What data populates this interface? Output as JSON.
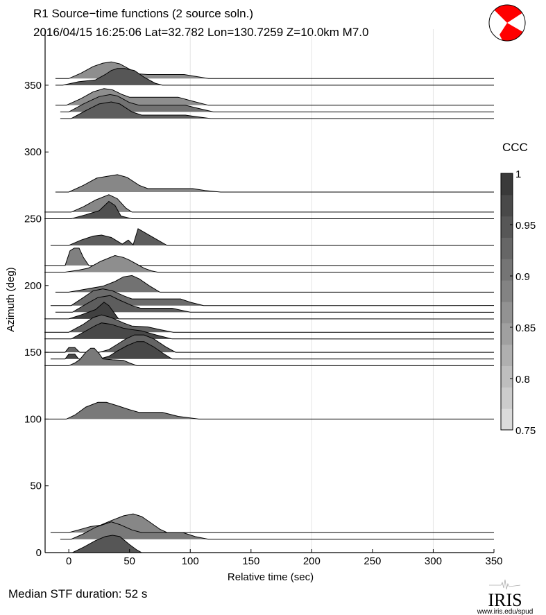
{
  "chart_data": {
    "type": "area",
    "title": "R1 Source−time functions (2 source soln.)",
    "subtitle": "2016/04/15 16:25:06   Lat=32.782  Lon=130.7259   Z=10.0km   M7.0",
    "xlabel": "Relative time (sec)",
    "ylabel": "Azimuth (deg)",
    "xlim": [
      -19.5,
      350
    ],
    "ylim": [
      0,
      392
    ],
    "xticks": [
      0,
      50,
      100,
      150,
      200,
      250,
      300,
      350
    ],
    "yticks": [
      0,
      50,
      100,
      150,
      200,
      250,
      300,
      350
    ],
    "grid_x": [
      100,
      200,
      300
    ],
    "colorbar": {
      "title": "CCC",
      "range": [
        0.75,
        1
      ],
      "ticks": [
        "1",
        "0.95",
        "0.9",
        "0.85",
        "0.8",
        "0.75"
      ],
      "tick_values": [
        1,
        0.95,
        0.9,
        0.85,
        0.8,
        0.75
      ],
      "light_color": "#e2e2e2",
      "dark_color": "#333333"
    },
    "series": [
      {
        "azimuth": 355,
        "ccc": 0.87,
        "points": [
          [
            -11,
            0
          ],
          [
            0,
            0
          ],
          [
            10,
            4
          ],
          [
            20,
            9
          ],
          [
            28,
            11.5
          ],
          [
            35,
            12.5
          ],
          [
            42,
            11
          ],
          [
            50,
            7
          ],
          [
            57,
            3.5
          ],
          [
            65,
            3
          ],
          [
            95,
            3
          ],
          [
            105,
            1.5
          ],
          [
            115,
            0
          ]
        ]
      },
      {
        "azimuth": 350,
        "ccc": 0.95,
        "points": [
          [
            -11,
            0
          ],
          [
            -5,
            0
          ],
          [
            8,
            2.6
          ],
          [
            22,
            4
          ],
          [
            30,
            8
          ],
          [
            35,
            11
          ],
          [
            40,
            12.5
          ],
          [
            46,
            12.5
          ],
          [
            54,
            11
          ],
          [
            62,
            6
          ],
          [
            71,
            1.5
          ],
          [
            77,
            0
          ]
        ]
      },
      {
        "azimuth": 335,
        "ccc": 0.87,
        "points": [
          [
            -11,
            0
          ],
          [
            -2,
            0
          ],
          [
            10,
            5
          ],
          [
            20,
            10
          ],
          [
            29,
            12.5
          ],
          [
            36,
            11.5
          ],
          [
            44,
            8
          ],
          [
            50,
            6
          ],
          [
            90,
            6
          ],
          [
            100,
            3.5
          ],
          [
            115,
            0
          ]
        ]
      },
      {
        "azimuth": 330,
        "ccc": 0.91,
        "points": [
          [
            -7,
            0
          ],
          [
            0,
            0
          ],
          [
            12,
            6
          ],
          [
            25,
            11.5
          ],
          [
            34,
            13
          ],
          [
            40,
            12
          ],
          [
            50,
            7
          ],
          [
            58,
            5
          ],
          [
            96,
            5
          ],
          [
            105,
            3
          ],
          [
            119,
            0
          ]
        ]
      },
      {
        "azimuth": 325,
        "ccc": 0.94,
        "points": [
          [
            -7,
            0
          ],
          [
            2,
            0
          ],
          [
            14,
            6
          ],
          [
            25,
            11
          ],
          [
            35,
            12.5
          ],
          [
            42,
            11
          ],
          [
            52,
            5
          ],
          [
            60,
            2.6
          ],
          [
            96,
            2.6
          ],
          [
            105,
            1.5
          ],
          [
            117,
            0
          ]
        ]
      },
      {
        "azimuth": 270,
        "ccc": 0.88,
        "points": [
          [
            -11,
            0
          ],
          [
            0,
            0
          ],
          [
            12,
            5
          ],
          [
            23,
            10.4
          ],
          [
            30,
            11.5
          ],
          [
            40,
            13
          ],
          [
            48,
            11
          ],
          [
            58,
            5
          ],
          [
            65,
            2.6
          ],
          [
            102,
            2.6
          ],
          [
            112,
            1.2
          ],
          [
            125,
            0
          ]
        ]
      },
      {
        "azimuth": 255,
        "ccc": 0.88,
        "points": [
          [
            -20,
            0
          ],
          [
            2,
            0
          ],
          [
            12,
            4
          ],
          [
            22,
            9
          ],
          [
            33,
            13
          ],
          [
            40,
            10
          ],
          [
            47,
            3
          ],
          [
            52,
            0
          ]
        ]
      },
      {
        "azimuth": 250,
        "ccc": 0.96,
        "points": [
          [
            -20,
            0
          ],
          [
            2,
            0
          ],
          [
            14,
            3
          ],
          [
            25,
            6
          ],
          [
            33,
            13
          ],
          [
            38,
            10
          ],
          [
            43,
            2
          ],
          [
            52,
            0
          ]
        ]
      },
      {
        "azimuth": 230,
        "ccc": 0.94,
        "points": [
          [
            -15,
            0
          ],
          [
            0,
            0
          ],
          [
            10,
            4
          ],
          [
            20,
            7
          ],
          [
            27,
            7.8
          ],
          [
            35,
            6
          ],
          [
            44,
            1
          ],
          [
            49,
            4
          ],
          [
            53,
            0.5
          ],
          [
            57,
            12.5
          ],
          [
            81,
            0
          ]
        ]
      },
      {
        "azimuth": 215,
        "ccc": 0.89,
        "points": [
          [
            -20,
            0
          ],
          [
            -3,
            0
          ],
          [
            1,
            11
          ],
          [
            4.5,
            13
          ],
          [
            8.5,
            13
          ],
          [
            12,
            6
          ],
          [
            16.5,
            0
          ]
        ]
      },
      {
        "azimuth": 210,
        "ccc": 0.87,
        "points": [
          [
            -20,
            0
          ],
          [
            -3,
            0
          ],
          [
            8,
            1.5
          ],
          [
            16,
            3
          ],
          [
            26,
            8
          ],
          [
            38,
            12.5
          ],
          [
            45,
            11
          ],
          [
            50,
            9
          ],
          [
            56,
            6
          ],
          [
            62,
            3
          ],
          [
            68,
            1
          ],
          [
            73,
            0
          ]
        ]
      },
      {
        "azimuth": 195,
        "ccc": 0.91,
        "points": [
          [
            -11,
            0
          ],
          [
            0,
            0
          ],
          [
            12,
            2
          ],
          [
            28,
            4.5
          ],
          [
            38,
            8
          ],
          [
            45,
            11.5
          ],
          [
            52,
            12.5
          ],
          [
            58,
            10
          ],
          [
            66,
            5
          ],
          [
            75,
            0
          ]
        ]
      },
      {
        "azimuth": 185,
        "ccc": 0.92,
        "points": [
          [
            -15,
            0
          ],
          [
            2,
            0
          ],
          [
            12,
            6
          ],
          [
            20,
            11
          ],
          [
            28,
            12.5
          ],
          [
            36,
            11
          ],
          [
            46,
            7
          ],
          [
            52,
            5
          ],
          [
            92,
            5
          ],
          [
            100,
            2.5
          ],
          [
            111,
            0
          ]
        ]
      },
      {
        "azimuth": 180,
        "ccc": 0.94,
        "points": [
          [
            -11,
            0
          ],
          [
            3,
            0
          ],
          [
            14,
            6
          ],
          [
            24,
            11
          ],
          [
            34,
            12.5
          ],
          [
            42,
            9
          ],
          [
            52,
            5
          ],
          [
            59,
            3
          ],
          [
            85,
            3
          ],
          [
            100,
            0
          ]
        ]
      },
      {
        "azimuth": 175,
        "ccc": 0.98,
        "points": [
          [
            -20,
            0
          ],
          [
            0,
            0
          ],
          [
            10,
            3
          ],
          [
            22,
            7
          ],
          [
            29,
            12.5
          ],
          [
            33,
            10
          ],
          [
            37,
            5
          ],
          [
            41,
            0
          ]
        ]
      },
      {
        "azimuth": 165,
        "ccc": 0.93,
        "points": [
          [
            -20,
            0
          ],
          [
            0,
            0
          ],
          [
            12,
            6
          ],
          [
            20,
            11
          ],
          [
            27,
            13
          ],
          [
            35,
            11
          ],
          [
            45,
            7
          ],
          [
            52,
            4.7
          ],
          [
            65,
            4
          ],
          [
            75,
            2
          ],
          [
            86,
            0
          ]
        ]
      },
      {
        "azimuth": 160,
        "ccc": 0.97,
        "points": [
          [
            -20,
            0
          ],
          [
            2,
            0
          ],
          [
            14,
            6
          ],
          [
            22,
            10
          ],
          [
            27,
            12
          ],
          [
            35,
            11
          ],
          [
            45,
            8
          ],
          [
            52,
            7
          ],
          [
            60,
            6
          ],
          [
            72,
            3
          ],
          [
            85,
            0
          ]
        ]
      },
      {
        "azimuth": 150,
        "ccc": 0.93,
        "points": [
          [
            -20,
            0
          ],
          [
            -3,
            0
          ],
          [
            0,
            3.6
          ],
          [
            5,
            3.6
          ],
          [
            9,
            0
          ],
          [
            25,
            0
          ],
          [
            33,
            2
          ],
          [
            40,
            6
          ],
          [
            47,
            10
          ],
          [
            54,
            13
          ],
          [
            62,
            13
          ],
          [
            70,
            10
          ],
          [
            80,
            4
          ],
          [
            88,
            0
          ]
        ]
      },
      {
        "azimuth": 145,
        "ccc": 0.97,
        "points": [
          [
            -15,
            0
          ],
          [
            -3,
            0
          ],
          [
            0,
            3.6
          ],
          [
            5,
            3.6
          ],
          [
            8,
            0
          ],
          [
            25,
            0
          ],
          [
            33,
            2
          ],
          [
            40,
            6
          ],
          [
            48,
            10
          ],
          [
            56,
            13
          ],
          [
            62,
            13
          ],
          [
            70,
            9
          ],
          [
            78,
            4
          ],
          [
            85,
            0
          ]
        ]
      },
      {
        "azimuth": 140,
        "ccc": 0.9,
        "points": [
          [
            -20,
            0
          ],
          [
            0,
            0
          ],
          [
            5,
            2
          ],
          [
            9,
            4.5
          ],
          [
            14,
            10
          ],
          [
            18,
            13
          ],
          [
            21,
            13
          ],
          [
            25,
            9
          ],
          [
            28,
            5
          ],
          [
            36,
            4.4
          ],
          [
            45,
            4
          ],
          [
            50,
            2
          ],
          [
            56,
            0
          ]
        ]
      },
      {
        "azimuth": 100,
        "ccc": 0.9,
        "points": [
          [
            -20,
            0
          ],
          [
            -2,
            0
          ],
          [
            5,
            3
          ],
          [
            14,
            9
          ],
          [
            24,
            12.5
          ],
          [
            31,
            12.5
          ],
          [
            40,
            10
          ],
          [
            50,
            7
          ],
          [
            58,
            5
          ],
          [
            77,
            5
          ],
          [
            90,
            2
          ],
          [
            107,
            0
          ]
        ]
      },
      {
        "azimuth": 15,
        "ccc": 0.88,
        "points": [
          [
            -15,
            0
          ],
          [
            0,
            0
          ],
          [
            10,
            2.5
          ],
          [
            18,
            4.5
          ],
          [
            26,
            5.5
          ],
          [
            35,
            9
          ],
          [
            45,
            12.5
          ],
          [
            53,
            14
          ],
          [
            60,
            12
          ],
          [
            68,
            7
          ],
          [
            75,
            2.5
          ],
          [
            81,
            0
          ]
        ]
      },
      {
        "azimuth": 10,
        "ccc": 0.9,
        "points": [
          [
            -7,
            0
          ],
          [
            2,
            0
          ],
          [
            12,
            4
          ],
          [
            22,
            9
          ],
          [
            35,
            13
          ],
          [
            42,
            11
          ],
          [
            52,
            7
          ],
          [
            60,
            5
          ],
          [
            94,
            5
          ],
          [
            104,
            2
          ],
          [
            115,
            0
          ]
        ]
      },
      {
        "azimuth": 0,
        "ccc": 0.95,
        "points": [
          [
            0,
            0
          ],
          [
            3,
            0
          ],
          [
            12,
            4
          ],
          [
            22,
            9
          ],
          [
            30,
            12
          ],
          [
            36,
            13
          ],
          [
            42,
            12
          ],
          [
            50,
            6
          ],
          [
            56,
            2
          ],
          [
            60,
            0
          ]
        ]
      }
    ]
  },
  "footer": {
    "median_label": "Median STF duration: 52 s"
  },
  "logo": {
    "name": "IRIS",
    "url_text": "www.iris.edu/spud"
  },
  "beachball": {
    "fill_color": "#ff0000"
  }
}
